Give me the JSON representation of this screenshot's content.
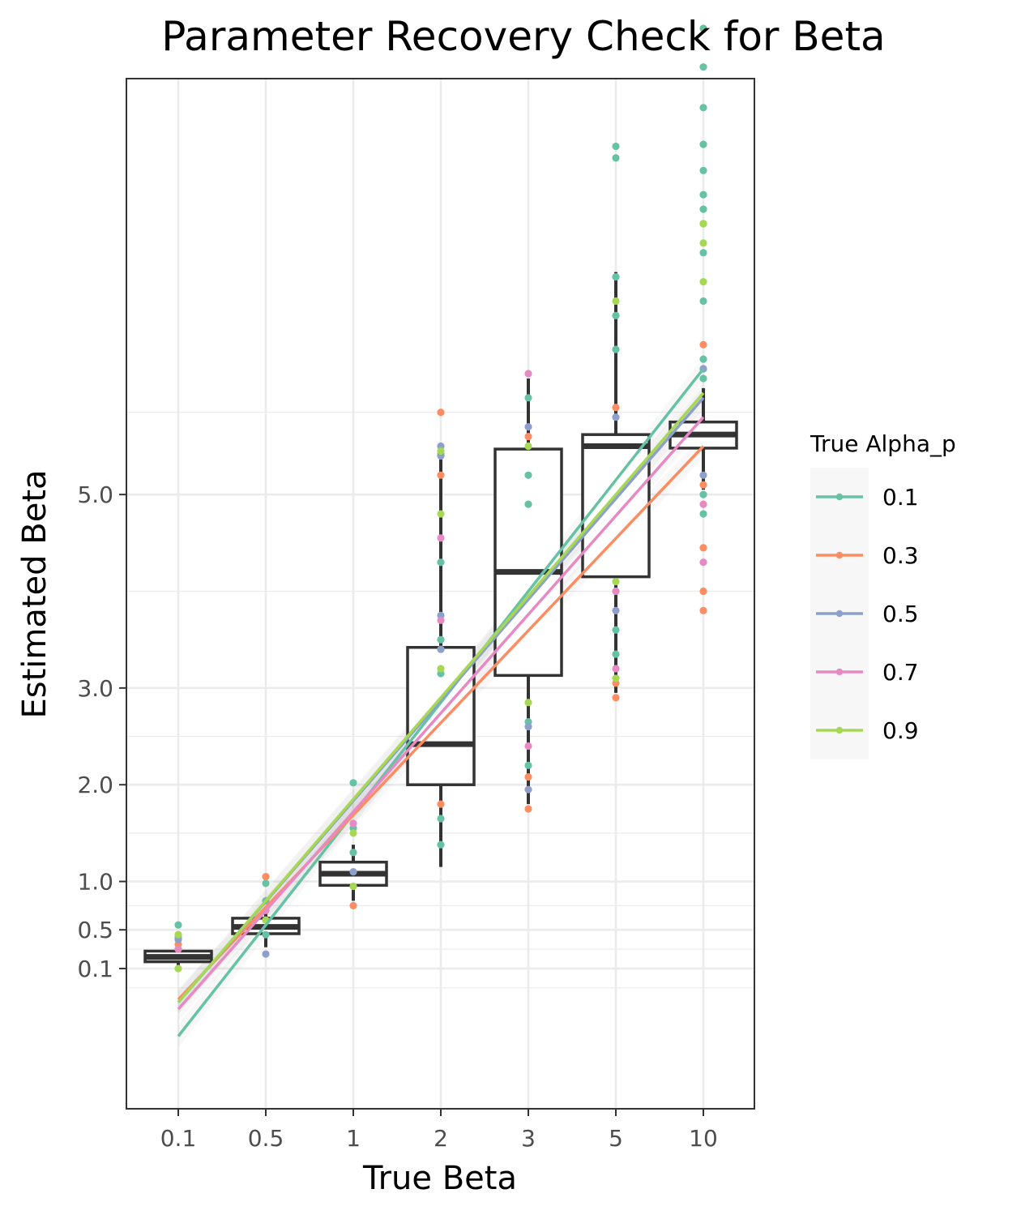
{
  "chart_data": {
    "type": "boxplot",
    "title": "Parameter Recovery Check for Beta",
    "xlabel": "True Beta",
    "ylabel": "Estimated Beta",
    "x_categories": [
      "0.1",
      "0.5",
      "1",
      "2",
      "3",
      "5",
      "10"
    ],
    "y_ticks": [
      {
        "value": 0.1,
        "label": "0.1"
      },
      {
        "value": 0.5,
        "label": "0.5"
      },
      {
        "value": 1.0,
        "label": "1.0"
      },
      {
        "value": 2.0,
        "label": "2.0"
      },
      {
        "value": 3.0,
        "label": "3.0"
      },
      {
        "value": 5.0,
        "label": "5.0"
      }
    ],
    "y_minor_ticks": [
      -0.1,
      0.3,
      0.75,
      1.5,
      2.5,
      4.0,
      5.85
    ],
    "ylim": [
      -1.35,
      9.3
    ],
    "grid": true,
    "boxes": [
      {
        "category": "0.1",
        "q1": 0.17,
        "median": 0.22,
        "q3": 0.28,
        "whisker_low": 0.1,
        "whisker_high": 0.35
      },
      {
        "category": "0.5",
        "q1": 0.46,
        "median": 0.53,
        "q3": 0.62,
        "whisker_low": 0.32,
        "whisker_high": 0.72
      },
      {
        "category": "1",
        "q1": 0.96,
        "median": 1.08,
        "q3": 1.2,
        "whisker_low": 0.8,
        "whisker_high": 1.38
      },
      {
        "category": "2",
        "q1": 2.0,
        "median": 2.42,
        "q3": 3.42,
        "whisker_low": 1.15,
        "whisker_high": 5.5
      },
      {
        "category": "3",
        "q1": 3.13,
        "median": 4.2,
        "q3": 5.47,
        "whisker_low": 1.8,
        "whisker_high": 6.2
      },
      {
        "category": "5",
        "q1": 4.15,
        "median": 5.5,
        "q3": 5.62,
        "whisker_low": 2.95,
        "whisker_high": 7.3
      },
      {
        "category": "10",
        "q1": 5.48,
        "median": 5.62,
        "q3": 5.75,
        "whisker_low": 5.05,
        "whisker_high": 6.1
      }
    ],
    "series": [
      {
        "name": "0.1",
        "color": "#66C2A5",
        "line": {
          "x1": 0.1,
          "y1": -0.6,
          "x2": 10,
          "y2": 6.3
        },
        "points": [
          {
            "x": "0.1",
            "y": [
              0.55,
              0.42,
              0.3
            ]
          },
          {
            "x": "0.5",
            "y": [
              0.98,
              0.8,
              0.45
            ]
          },
          {
            "x": "1",
            "y": [
              2.02,
              1.55,
              1.3
            ]
          },
          {
            "x": "2",
            "y": [
              5.42,
              4.3,
              3.5,
              3.15,
              1.38,
              1.65
            ]
          },
          {
            "x": "3",
            "y": [
              6.0,
              5.2,
              4.9,
              2.2,
              2.65
            ]
          },
          {
            "x": "5",
            "y": [
              8.6,
              8.48,
              7.25,
              6.85,
              6.5,
              4.0,
              3.35,
              3.6
            ]
          },
          {
            "x": "10",
            "y": [
              9.82,
              9.42,
              9.0,
              8.62,
              8.35,
              8.1,
              7.95,
              7.8,
              7.5,
              7.0,
              6.4,
              6.3,
              6.2,
              5.0,
              4.8
            ]
          }
        ]
      },
      {
        "name": "0.3",
        "color": "#FC8D62",
        "line": {
          "x1": 0.1,
          "y1": -0.22,
          "x2": 10,
          "y2": 5.5
        },
        "points": [
          {
            "x": "0.1",
            "y": [
              0.35
            ]
          },
          {
            "x": "0.5",
            "y": [
              1.05
            ]
          },
          {
            "x": "1",
            "y": [
              0.75
            ]
          },
          {
            "x": "2",
            "y": [
              5.85,
              5.2,
              1.8
            ]
          },
          {
            "x": "3",
            "y": [
              5.6,
              1.75,
              2.08
            ]
          },
          {
            "x": "5",
            "y": [
              2.9,
              3.05,
              5.9
            ]
          },
          {
            "x": "10",
            "y": [
              6.55,
              5.1,
              4.45,
              4.0,
              3.8
            ]
          }
        ]
      },
      {
        "name": "0.5",
        "color": "#8DA0CB",
        "line": {
          "x1": 0.1,
          "y1": -0.25,
          "x2": 10,
          "y2": 6.0
        },
        "points": [
          {
            "x": "0.1",
            "y": [
              0.4
            ]
          },
          {
            "x": "0.5",
            "y": [
              0.25
            ]
          },
          {
            "x": "1",
            "y": [
              1.1
            ]
          },
          {
            "x": "2",
            "y": [
              5.5,
              5.4,
              3.4,
              3.75
            ]
          },
          {
            "x": "3",
            "y": [
              2.6,
              1.95,
              5.7
            ]
          },
          {
            "x": "5",
            "y": [
              5.8,
              3.8
            ]
          },
          {
            "x": "10",
            "y": [
              6.3,
              5.2
            ]
          }
        ]
      },
      {
        "name": "0.7",
        "color": "#E78AC3",
        "line": {
          "x1": 0.1,
          "y1": -0.32,
          "x2": 10,
          "y2": 5.8
        },
        "points": [
          {
            "x": "0.1",
            "y": [
              0.3
            ]
          },
          {
            "x": "0.5",
            "y": [
              0.7
            ]
          },
          {
            "x": "1",
            "y": [
              1.6
            ]
          },
          {
            "x": "2",
            "y": [
              4.55,
              3.7
            ]
          },
          {
            "x": "3",
            "y": [
              6.25,
              2.4
            ]
          },
          {
            "x": "5",
            "y": [
              3.2,
              4.0
            ]
          },
          {
            "x": "10",
            "y": [
              4.9,
              4.3
            ]
          }
        ]
      },
      {
        "name": "0.9",
        "color": "#A6D854",
        "line": {
          "x1": 0.1,
          "y1": -0.25,
          "x2": 10,
          "y2": 6.05
        },
        "points": [
          {
            "x": "0.1",
            "y": [
              0.1,
              0.45
            ]
          },
          {
            "x": "0.5",
            "y": [
              0.6
            ]
          },
          {
            "x": "1",
            "y": [
              1.5,
              0.95
            ]
          },
          {
            "x": "2",
            "y": [
              5.45,
              4.8,
              3.2
            ]
          },
          {
            "x": "3",
            "y": [
              5.5,
              2.85
            ]
          },
          {
            "x": "5",
            "y": [
              7.0,
              3.1,
              4.1
            ]
          },
          {
            "x": "10",
            "y": [
              7.8,
              7.6,
              7.2
            ]
          }
        ]
      }
    ],
    "legend": {
      "title": "True Alpha_p",
      "position": "right"
    }
  }
}
